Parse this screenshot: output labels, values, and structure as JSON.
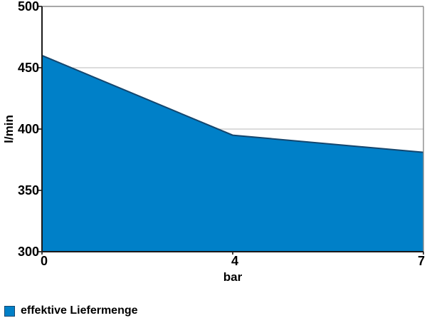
{
  "chart_data": {
    "type": "area",
    "categories": [
      "0",
      "4",
      "7"
    ],
    "x_values": [
      0,
      4,
      7
    ],
    "series": [
      {
        "name": "effektive Liefermenge",
        "values": [
          460,
          395,
          381
        ]
      }
    ],
    "title": "",
    "xlabel": "bar",
    "ylabel": "l/min",
    "ylim": [
      300,
      500
    ],
    "yticks": [
      300,
      350,
      400,
      450,
      500
    ],
    "grid": true,
    "legend_position": "bottom-left",
    "colors": {
      "area_fill": "#0080C8",
      "area_stroke": "#14466E",
      "grid": "#C8C8C8",
      "axis": "#1A1A1A",
      "border": "#8A8A8A",
      "text": "#000000"
    }
  }
}
